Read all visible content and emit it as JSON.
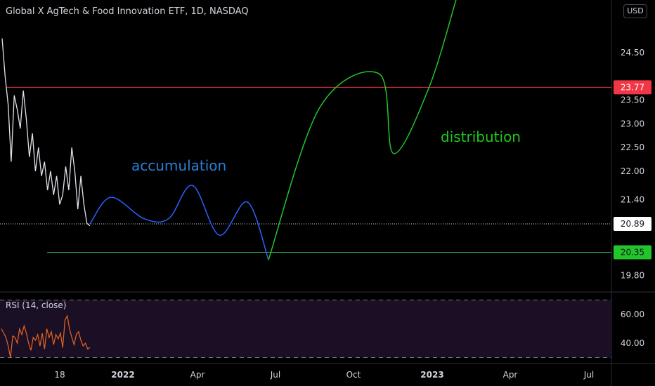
{
  "header": {
    "title": "Global X AgTech & Food Innovation ETF, 1D, NASDAQ",
    "currency_button": "USD"
  },
  "annotations": {
    "accumulation": "accumulation",
    "distribution": "distribution"
  },
  "indicator": {
    "label": "RSI (14, close)"
  },
  "colors": {
    "background": "#000000",
    "price_line": "#e0e3eb",
    "accumulation_path": "#2962ff",
    "accumulation_text": "#2a7fd8",
    "distribution_path": "#22c52a",
    "distribution_text": "#1ec81e",
    "resistance_line": "#f23645",
    "support_line": "#22ab94",
    "rsi_line": "#e8641f",
    "rsi_band": "#1b0f26",
    "current_price_tag": "#ffffff"
  },
  "chart_data": [
    {
      "type": "line",
      "title": "Global X AgTech & Food Innovation ETF, 1D, NASDAQ",
      "ylim": [
        19.6,
        25.2
      ],
      "y_ticks": [
        "24.50",
        "23.50",
        "23.00",
        "22.50",
        "22.00",
        "21.40",
        "19.80"
      ],
      "x_ticks": [
        "18",
        "2022",
        "Apr",
        "Jul",
        "Oct",
        "2023",
        "Apr",
        "Jul"
      ],
      "levels": [
        {
          "name": "resistance",
          "value": 23.77,
          "label": "23.77",
          "color": "#f23645"
        },
        {
          "name": "current",
          "value": 20.89,
          "label": "20.89",
          "color": "#ffffff"
        },
        {
          "name": "support",
          "value": 20.35,
          "label": "20.35",
          "color": "#22ab94"
        }
      ],
      "price_series": [
        24.8,
        24.0,
        23.4,
        22.2,
        23.6,
        23.3,
        22.9,
        23.7,
        23.1,
        22.3,
        22.8,
        22.0,
        22.5,
        21.9,
        22.2,
        21.6,
        22.0,
        21.5,
        21.9,
        21.3,
        21.5,
        22.1,
        21.6,
        22.5,
        22.0,
        21.2,
        21.9,
        21.3,
        20.9,
        20.85
      ],
      "projection": [
        {
          "phase": "accumulation",
          "path": [
            [
              0,
              20.89
            ],
            [
              1,
              21.45
            ],
            [
              2,
              21.0
            ],
            [
              3,
              20.8
            ],
            [
              4,
              21.0
            ],
            [
              5,
              21.7
            ],
            [
              6,
              21.0
            ],
            [
              7,
              20.8
            ],
            [
              8,
              21.35
            ],
            [
              9,
              20.25
            ]
          ]
        },
        {
          "phase": "distribution",
          "path": [
            [
              0,
              20.25
            ],
            [
              1,
              21.4
            ],
            [
              2,
              22.9
            ],
            [
              3,
              23.9
            ],
            [
              4,
              22.3
            ],
            [
              5,
              23.6
            ],
            [
              6,
              25.5
            ]
          ]
        }
      ]
    },
    {
      "type": "line",
      "title": "RSI (14, close)",
      "ylim": [
        28,
        72
      ],
      "y_ticks": [
        "60.00",
        "40.00"
      ],
      "bands": [
        70,
        30
      ],
      "values": [
        50,
        47,
        44,
        38,
        30,
        45,
        44,
        40,
        50,
        46,
        52,
        47,
        40,
        35,
        44,
        42,
        46,
        38,
        47,
        36,
        50,
        44,
        48,
        39,
        46,
        43,
        47,
        37,
        56,
        59,
        50,
        44,
        39,
        46,
        48,
        42,
        38,
        40,
        36,
        37
      ]
    }
  ]
}
